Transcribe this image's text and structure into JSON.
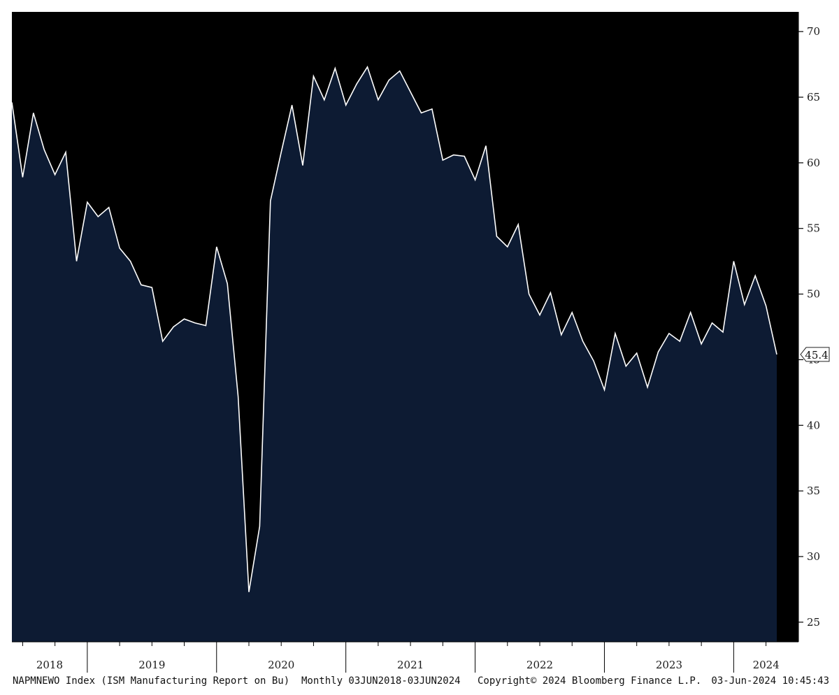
{
  "chart_data": {
    "type": "area",
    "x": [
      "2018-06",
      "2018-07",
      "2018-08",
      "2018-09",
      "2018-10",
      "2018-11",
      "2018-12",
      "2019-01",
      "2019-02",
      "2019-03",
      "2019-04",
      "2019-05",
      "2019-06",
      "2019-07",
      "2019-08",
      "2019-09",
      "2019-10",
      "2019-11",
      "2019-12",
      "2020-01",
      "2020-02",
      "2020-03",
      "2020-04",
      "2020-05",
      "2020-06",
      "2020-07",
      "2020-08",
      "2020-09",
      "2020-10",
      "2020-11",
      "2020-12",
      "2021-01",
      "2021-02",
      "2021-03",
      "2021-04",
      "2021-05",
      "2021-06",
      "2021-07",
      "2021-08",
      "2021-09",
      "2021-10",
      "2021-11",
      "2021-12",
      "2022-01",
      "2022-02",
      "2022-03",
      "2022-04",
      "2022-05",
      "2022-06",
      "2022-07",
      "2022-08",
      "2022-09",
      "2022-10",
      "2022-11",
      "2022-12",
      "2023-01",
      "2023-02",
      "2023-03",
      "2023-04",
      "2023-05",
      "2023-06",
      "2023-07",
      "2023-08",
      "2023-09",
      "2023-10",
      "2023-11",
      "2023-12",
      "2024-01",
      "2024-02",
      "2024-03",
      "2024-04",
      "2024-05"
    ],
    "series": [
      {
        "values": [
          64.6,
          58.9,
          63.8,
          61.0,
          59.1,
          60.8,
          52.5,
          57.0,
          55.9,
          56.6,
          53.5,
          52.5,
          50.7,
          50.5,
          46.4,
          47.5,
          48.1,
          47.8,
          47.6,
          53.6,
          50.8,
          42.2,
          27.3,
          32.3,
          57.1,
          60.8,
          64.4,
          59.8,
          66.6,
          64.8,
          67.2,
          64.4,
          66.0,
          67.3,
          64.8,
          66.3,
          67.0,
          65.4,
          63.8,
          64.1,
          60.2,
          60.6,
          60.5,
          58.7,
          61.3,
          54.4,
          53.6,
          55.3,
          50.0,
          48.4,
          50.1,
          46.9,
          48.6,
          46.4,
          44.9,
          42.7,
          47.0,
          44.5,
          45.5,
          42.9,
          45.6,
          47.0,
          46.4,
          48.6,
          46.2,
          47.8,
          47.1,
          52.5,
          49.2,
          51.4,
          49.1,
          45.4
        ]
      }
    ],
    "ylim": [
      23.5,
      71.5
    ],
    "y_ticks": [
      25,
      30,
      35,
      40,
      45,
      50,
      55,
      60,
      65,
      70
    ],
    "year_labels": [
      "2018",
      "2019",
      "2020",
      "2021",
      "2022",
      "2023",
      "2024"
    ],
    "last_value_label": "45.4",
    "grid": false,
    "legend": "none"
  },
  "footer": {
    "left": "NAPMNEWO Index (ISM Manufacturing Report on Bu)  Monthly 03JUN2018-03JUN2024",
    "center": "Copyright© 2024 Bloomberg Finance L.P.",
    "right": "03-Jun-2024 10:45:43"
  },
  "colors": {
    "plot_background": "#000000",
    "area_fill": "#0d1b33",
    "line": "#ffffff",
    "frame_background": "#ffffff",
    "axis_text": "#1a1a1a"
  }
}
